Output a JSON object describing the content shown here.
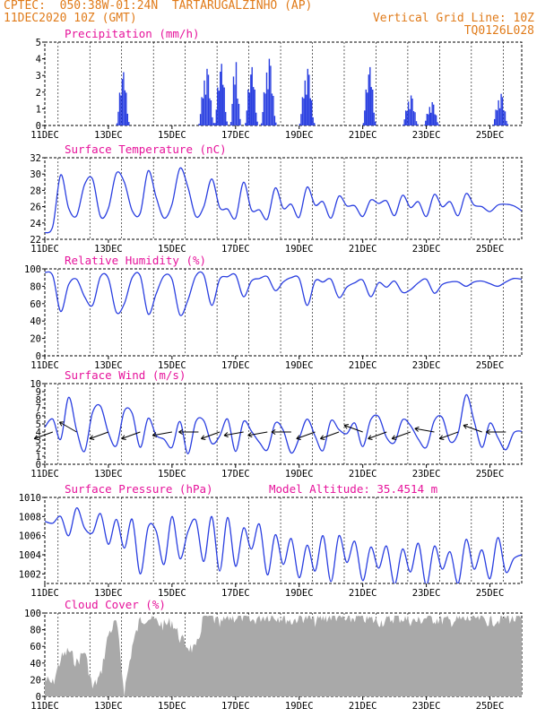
{
  "header": {
    "line1_left": "CPTEC:  050:38W-01:24N  TARTARUGALZINHO (AP)",
    "line2_left": "11DEC2020 10Z (GMT)",
    "line2_right": "Vertical Grid Line: 10Z",
    "line3_right": "TQ0126L028"
  },
  "colors": {
    "header": "#e07b1a",
    "title": "#e6139b",
    "series": "#2a3fe0",
    "cloud": "#a9a9a9",
    "arrow": "#000000"
  },
  "chart_data": [
    {
      "id": "precip",
      "type": "bar",
      "title": "Precipitation (mm/h)",
      "ylim": [
        0,
        5
      ],
      "yticks": [
        0,
        1,
        2,
        3,
        4,
        5
      ],
      "x_date_labels": [
        "11DEC",
        "13DEC",
        "15DEC",
        "17DEC",
        "19DEC",
        "21DEC",
        "23DEC",
        "25DEC"
      ],
      "x_start": "2020-12-11 00Z",
      "x_hours": 360,
      "grid_hour_offset": 10,
      "gaps_hours": [
        [
          2,
          54
        ],
        [
          66,
          116
        ],
        [
          175,
          192
        ],
        [
          220,
          240
        ],
        [
          260,
          270
        ],
        [
          300,
          338
        ],
        [
          358,
          360
        ]
      ],
      "events": [
        {
          "start": 54,
          "dur": 10,
          "peak": 3.2
        },
        {
          "start": 116,
          "dur": 12,
          "peak": 3.4
        },
        {
          "start": 128,
          "dur": 10,
          "peak": 3.7
        },
        {
          "start": 140,
          "dur": 8,
          "peak": 3.8
        },
        {
          "start": 151,
          "dur": 10,
          "peak": 3.5
        },
        {
          "start": 163,
          "dur": 12,
          "peak": 4.0
        },
        {
          "start": 192,
          "dur": 12,
          "peak": 3.4
        },
        {
          "start": 240,
          "dur": 10,
          "peak": 3.5
        },
        {
          "start": 270,
          "dur": 12,
          "peak": 1.8
        },
        {
          "start": 286,
          "dur": 12,
          "peak": 1.4
        },
        {
          "start": 338,
          "dur": 12,
          "peak": 1.9
        }
      ]
    },
    {
      "id": "temp",
      "type": "line",
      "title": "Surface Temperature (nC)",
      "ylim": [
        22,
        32
      ],
      "yticks": [
        22,
        24,
        26,
        28,
        30,
        32
      ],
      "x_date_labels": [
        "11DEC",
        "13DEC",
        "15DEC",
        "17DEC",
        "19DEC",
        "21DEC",
        "23DEC",
        "25DEC"
      ],
      "x": [
        0,
        6,
        12,
        18,
        24,
        30,
        36,
        42,
        48,
        54,
        60,
        66,
        72,
        78,
        84,
        90,
        96,
        102,
        108,
        114,
        120,
        126,
        132,
        138,
        144,
        150,
        156,
        162,
        168,
        174,
        180,
        186,
        192,
        198,
        204,
        210,
        216,
        222,
        228,
        234,
        240,
        246,
        252,
        258,
        264,
        270,
        276,
        282,
        288,
        294,
        300,
        306,
        312,
        318,
        324,
        330,
        336,
        342,
        348,
        354,
        360
      ],
      "values": [
        22.8,
        23.6,
        29.9,
        25.8,
        24.9,
        28.7,
        29.4,
        24.8,
        25.8,
        30.1,
        29.0,
        25.5,
        25.2,
        30.4,
        27.2,
        24.6,
        26.3,
        30.7,
        28.4,
        24.8,
        26.0,
        29.4,
        25.9,
        25.7,
        24.6,
        29.0,
        25.6,
        25.6,
        24.5,
        28.3,
        25.8,
        26.3,
        24.7,
        28.4,
        26.2,
        26.6,
        24.6,
        27.3,
        26.1,
        26.1,
        24.8,
        26.8,
        26.4,
        26.7,
        24.9,
        27.4,
        25.9,
        26.6,
        24.8,
        27.5,
        26.0,
        26.6,
        24.9,
        27.6,
        26.2,
        26.0,
        25.4,
        26.2,
        26.3,
        26.1,
        25.5
      ]
    },
    {
      "id": "rh",
      "type": "line",
      "title": "Relative Humidity (%)",
      "ylim": [
        0,
        100
      ],
      "yticks": [
        0,
        20,
        40,
        60,
        80,
        100
      ],
      "x_date_labels": [
        "11DEC",
        "13DEC",
        "15DEC",
        "17DEC",
        "19DEC",
        "21DEC",
        "23DEC",
        "25DEC"
      ],
      "x": [
        0,
        6,
        12,
        18,
        24,
        30,
        36,
        42,
        48,
        54,
        60,
        66,
        72,
        78,
        84,
        90,
        96,
        102,
        108,
        114,
        120,
        126,
        132,
        138,
        144,
        150,
        156,
        162,
        168,
        174,
        180,
        186,
        192,
        198,
        204,
        210,
        216,
        222,
        228,
        234,
        240,
        246,
        252,
        258,
        264,
        270,
        276,
        282,
        288,
        294,
        300,
        306,
        312,
        318,
        324,
        330,
        336,
        342,
        348,
        354,
        360
      ],
      "values": [
        96,
        92,
        51,
        82,
        88,
        68,
        58,
        91,
        89,
        50,
        60,
        90,
        92,
        48,
        71,
        92,
        88,
        47,
        64,
        92,
        93,
        58,
        88,
        91,
        93,
        68,
        86,
        89,
        91,
        75,
        85,
        90,
        89,
        58,
        86,
        85,
        88,
        67,
        79,
        84,
        87,
        68,
        84,
        79,
        86,
        73,
        76,
        84,
        88,
        72,
        82,
        85,
        85,
        80,
        85,
        86,
        83,
        80,
        85,
        89,
        88
      ]
    },
    {
      "id": "wind",
      "type": "line",
      "title": "Surface Wind (m/s)",
      "ylim": [
        0,
        10
      ],
      "yticks": [
        0,
        1,
        2,
        3,
        4,
        5,
        6,
        7,
        8,
        9,
        10
      ],
      "x_date_labels": [
        "11DEC",
        "13DEC",
        "15DEC",
        "17DEC",
        "19DEC",
        "21DEC",
        "23DEC",
        "25DEC"
      ],
      "x": [
        0,
        6,
        12,
        18,
        24,
        30,
        36,
        42,
        48,
        54,
        60,
        66,
        72,
        78,
        84,
        90,
        96,
        102,
        108,
        114,
        120,
        126,
        132,
        138,
        144,
        150,
        156,
        162,
        168,
        174,
        180,
        186,
        192,
        198,
        204,
        210,
        216,
        222,
        228,
        234,
        240,
        246,
        252,
        258,
        264,
        270,
        276,
        282,
        288,
        294,
        300,
        306,
        312,
        318,
        324,
        330,
        336,
        342,
        348,
        354,
        360
      ],
      "values": [
        4.6,
        5.6,
        3.1,
        8.3,
        4.2,
        1.6,
        6.4,
        7.2,
        3.9,
        2.3,
        6.6,
        6.3,
        2.1,
        5.7,
        3.6,
        3.1,
        2.1,
        5.3,
        1.3,
        5.3,
        5.4,
        2.6,
        3.5,
        5.6,
        1.6,
        5.3,
        4.1,
        2.7,
        1.8,
        5.1,
        4.2,
        1.4,
        3.2,
        5.6,
        3.5,
        1.7,
        5.4,
        4.3,
        3.8,
        5.1,
        2.2,
        5.5,
        5.9,
        3.3,
        2.7,
        5.5,
        4.8,
        3.1,
        2.1,
        5.4,
        5.8,
        2.8,
        3.9,
        8.6,
        5.4,
        2.1,
        5.1,
        3.3,
        1.8,
        3.9,
        4.1
      ],
      "arrows_note": "wind direction vectors",
      "arrow_hours": [
        6,
        24,
        48,
        72,
        96,
        116,
        132,
        150,
        168,
        186,
        204,
        222,
        240,
        258,
        276,
        294,
        312,
        330,
        348
      ],
      "arrow_dirs_deg": [
        200,
        150,
        200,
        200,
        190,
        180,
        200,
        190,
        190,
        180,
        200,
        200,
        160,
        200,
        200,
        170,
        200,
        160,
        180
      ]
    },
    {
      "id": "pres",
      "type": "line",
      "title": "Surface Pressure (hPa)",
      "ylim": [
        1001,
        1010
      ],
      "yticks": [
        1002,
        1004,
        1006,
        1008,
        1010
      ],
      "extra_label": "Model Altitude: 35.4514 m",
      "x_date_labels": [
        "11DEC",
        "13DEC",
        "15DEC",
        "17DEC",
        "19DEC",
        "21DEC",
        "23DEC",
        "25DEC"
      ],
      "x": [
        0,
        6,
        12,
        18,
        24,
        30,
        36,
        42,
        48,
        54,
        60,
        66,
        72,
        78,
        84,
        90,
        96,
        102,
        108,
        114,
        120,
        126,
        132,
        138,
        144,
        150,
        156,
        162,
        168,
        174,
        180,
        186,
        192,
        198,
        204,
        210,
        216,
        222,
        228,
        234,
        240,
        246,
        252,
        258,
        264,
        270,
        276,
        282,
        288,
        294,
        300,
        306,
        312,
        318,
        324,
        330,
        336,
        342,
        348,
        354,
        360
      ],
      "values": [
        1007.5,
        1007.3,
        1008.0,
        1006.0,
        1008.9,
        1006.8,
        1006.3,
        1008.3,
        1005.1,
        1007.7,
        1004.7,
        1007.7,
        1002.0,
        1006.9,
        1006.5,
        1003.0,
        1008.0,
        1003.6,
        1006.4,
        1007.6,
        1003.3,
        1008.0,
        1002.3,
        1007.9,
        1002.8,
        1006.8,
        1004.6,
        1007.2,
        1001.9,
        1006.1,
        1003.0,
        1005.7,
        1001.6,
        1005.0,
        1002.3,
        1006.0,
        1001.2,
        1006.0,
        1003.2,
        1005.4,
        1001.3,
        1004.8,
        1002.6,
        1004.9,
        1000.9,
        1004.6,
        1002.2,
        1005.2,
        1000.8,
        1004.9,
        1002.5,
        1004.3,
        1001.0,
        1005.6,
        1002.5,
        1004.5,
        1001.5,
        1005.8,
        1002.2,
        1003.6,
        1004.0
      ]
    },
    {
      "id": "cloud",
      "type": "area",
      "title": "Cloud Cover (%)",
      "ylim": [
        0,
        100
      ],
      "yticks": [
        0,
        20,
        40,
        60,
        80,
        100
      ],
      "x_date_labels": [
        "11DEC",
        "13DEC",
        "15DEC",
        "17DEC",
        "19DEC",
        "21DEC",
        "23DEC",
        "25DEC"
      ],
      "x": [
        0,
        6,
        12,
        18,
        24,
        30,
        36,
        42,
        48,
        54,
        60,
        66,
        72,
        78,
        84,
        90,
        96,
        102,
        108,
        114,
        120,
        126,
        132,
        138,
        144,
        150,
        156,
        162,
        168,
        174,
        180,
        186,
        192,
        198,
        204,
        210,
        216,
        222,
        228,
        234,
        240,
        246,
        252,
        258,
        264,
        270,
        276,
        282,
        288,
        294,
        300,
        306,
        312,
        318,
        324,
        330,
        336,
        342,
        348,
        354,
        360
      ],
      "values": [
        20,
        15,
        45,
        55,
        40,
        55,
        10,
        25,
        75,
        90,
        5,
        60,
        92,
        95,
        90,
        85,
        90,
        70,
        60,
        55,
        97,
        95,
        85,
        95,
        95,
        96,
        90,
        95,
        97,
        96,
        95,
        90,
        95,
        95,
        90,
        94,
        96,
        96,
        90,
        95,
        94,
        92,
        90,
        90,
        95,
        94,
        91,
        90,
        95,
        93,
        92,
        90,
        92,
        92,
        94,
        93,
        90,
        92,
        95,
        93,
        92
      ]
    }
  ]
}
